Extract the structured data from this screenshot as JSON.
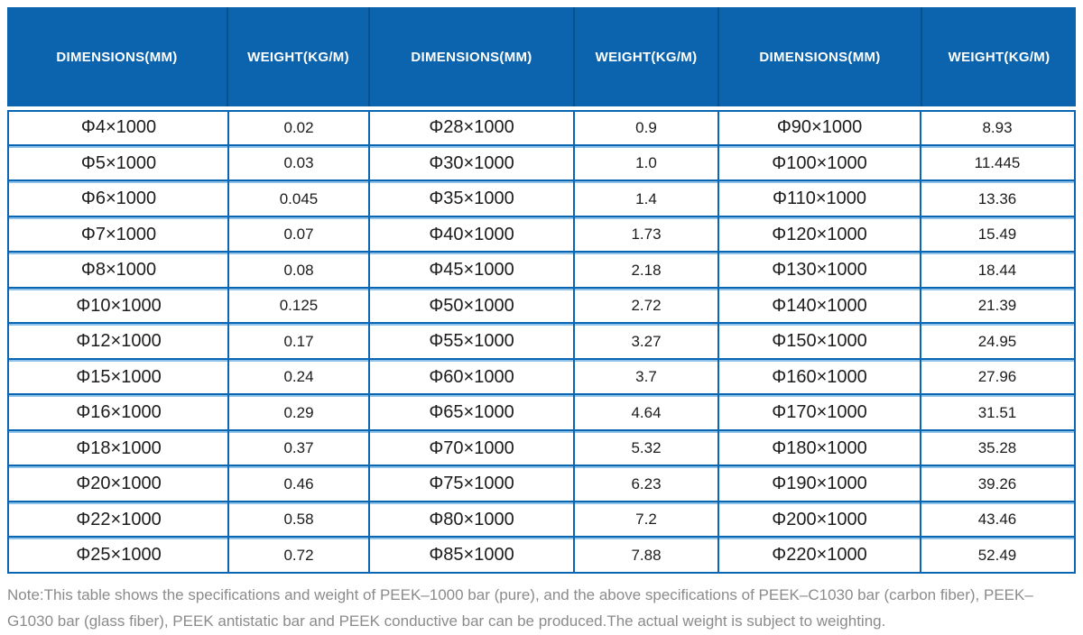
{
  "colors": {
    "header_bg": "#0b64ad",
    "header_divider": "#07518d",
    "grid_line": "#0a66b2",
    "grid_line_light": "#8fc2e8",
    "header_text": "#ffffff",
    "cell_text": "#1c1c1c",
    "note_text": "#8b8b8b"
  },
  "table": {
    "header_labels": [
      "DIMENSIONS(MM)",
      "WEIGHT(KG/M)",
      "DIMENSIONS(MM)",
      "WEIGHT(KG/M)",
      "DIMENSIONS(MM)",
      "WEIGHT(KG/M)"
    ],
    "rows": [
      [
        "Φ4×1000",
        "0.02",
        "Φ28×1000",
        "0.9",
        "Φ90×1000",
        "8.93"
      ],
      [
        "Φ5×1000",
        "0.03",
        "Φ30×1000",
        "1.0",
        "Φ100×1000",
        "11.445"
      ],
      [
        "Φ6×1000",
        "0.045",
        "Φ35×1000",
        "1.4",
        "Φ110×1000",
        "13.36"
      ],
      [
        "Φ7×1000",
        "0.07",
        "Φ40×1000",
        "1.73",
        "Φ120×1000",
        "15.49"
      ],
      [
        "Φ8×1000",
        "0.08",
        "Φ45×1000",
        "2.18",
        "Φ130×1000",
        "18.44"
      ],
      [
        "Φ10×1000",
        "0.125",
        "Φ50×1000",
        "2.72",
        "Φ140×1000",
        "21.39"
      ],
      [
        "Φ12×1000",
        "0.17",
        "Φ55×1000",
        "3.27",
        "Φ150×1000",
        "24.95"
      ],
      [
        "Φ15×1000",
        "0.24",
        "Φ60×1000",
        "3.7",
        "Φ160×1000",
        "27.96"
      ],
      [
        "Φ16×1000",
        "0.29",
        "Φ65×1000",
        "4.64",
        "Φ170×1000",
        "31.51"
      ],
      [
        "Φ18×1000",
        "0.37",
        "Φ70×1000",
        "5.32",
        "Φ180×1000",
        "35.28"
      ],
      [
        "Φ20×1000",
        "0.46",
        "Φ75×1000",
        "6.23",
        "Φ190×1000",
        "39.26"
      ],
      [
        "Φ22×1000",
        "0.58",
        "Φ80×1000",
        "7.2",
        "Φ200×1000",
        "43.46"
      ],
      [
        "Φ25×1000",
        "0.72",
        "Φ85×1000",
        "7.88",
        "Φ220×1000",
        "52.49"
      ]
    ]
  },
  "note": {
    "text": "Note:This table shows the specifications and weight of PEEK–1000 bar (pure), and the above specifications of PEEK–C1030 bar (carbon fiber), PEEK–G1030 bar (glass fiber), PEEK antistatic bar and PEEK conductive bar can be produced.The actual weight is subject to weighting."
  }
}
